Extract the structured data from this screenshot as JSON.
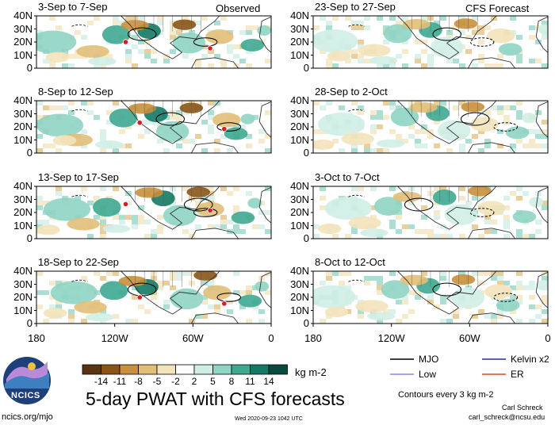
{
  "chart_data": {
    "type": "heatmap",
    "title": "5-day PWAT with CFS forecasts",
    "units": "kg m-2",
    "observed_label": "Observed",
    "forecast_label": "CFS Forecast",
    "y_ticks": [
      "40N",
      "30N",
      "20N",
      "10N",
      "0"
    ],
    "x_ticks": [
      "180",
      "120W",
      "60W",
      "0"
    ],
    "panels": [
      {
        "period": "3-Sep to 7-Sep",
        "kind": "observed"
      },
      {
        "period": "8-Sep to 12-Sep",
        "kind": "observed"
      },
      {
        "period": "13-Sep to 17-Sep",
        "kind": "observed"
      },
      {
        "period": "18-Sep to 22-Sep",
        "kind": "observed"
      },
      {
        "period": "23-Sep to 27-Sep",
        "kind": "forecast"
      },
      {
        "period": "28-Sep to 2-Oct",
        "kind": "forecast"
      },
      {
        "period": "3-Oct to 7-Oct",
        "kind": "forecast"
      },
      {
        "period": "8-Oct to 12-Oct",
        "kind": "forecast"
      }
    ],
    "colorbar": {
      "levels": [
        "-14",
        "-11",
        "-8",
        "-5",
        "-2",
        "2",
        "5",
        "8",
        "11",
        "14"
      ],
      "colors": [
        "#5a3410",
        "#8a5417",
        "#c88f3c",
        "#e2bf79",
        "#f3e3bb",
        "#ffffff",
        "#cfeee6",
        "#8fd4c4",
        "#3ea891",
        "#147a66",
        "#0a4a3c"
      ]
    },
    "legend": [
      {
        "label": "MJO",
        "color": "#000000"
      },
      {
        "label": "Kelvin x2",
        "color": "#2a2a9a"
      },
      {
        "label": "Low",
        "color": "#8a8ae0"
      },
      {
        "label": "ER",
        "color": "#d84a2a"
      }
    ],
    "contour_note": "Contours every 3 kg m-2"
  },
  "footer": {
    "logo_text": "NCICS",
    "url": "ncics.org/mjo",
    "timestamp": "Wed 2020-09-23 1042 UTC",
    "author": "Carl Schreck",
    "email": "carl_schreck@ncsu.edu"
  }
}
